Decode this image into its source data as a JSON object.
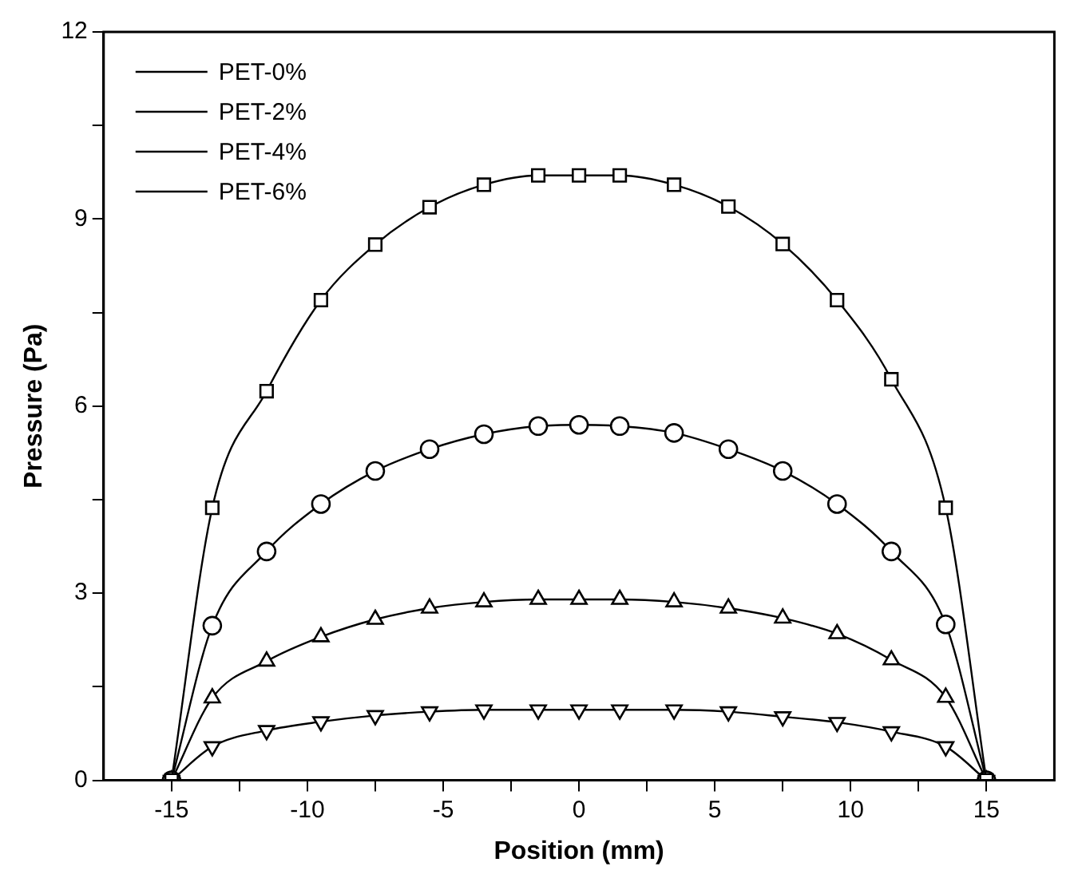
{
  "chart_data": {
    "type": "line",
    "xlabel": "Position (mm)",
    "ylabel": "Pressure (Pa)",
    "x": [
      -15,
      -13.5,
      -11.5,
      -9.5,
      -7.5,
      -5.5,
      -3.5,
      -1.5,
      0,
      1.5,
      3.5,
      5.5,
      7.5,
      9.5,
      11.5,
      13.5,
      15
    ],
    "series": [
      {
        "name": "PET-0%",
        "color": "#000000",
        "marker": "square",
        "values": [
          0,
          4.37,
          6.24,
          7.7,
          8.59,
          9.19,
          9.55,
          9.7,
          9.7,
          9.7,
          9.55,
          9.2,
          8.6,
          7.7,
          6.43,
          4.37,
          0
        ]
      },
      {
        "name": "PET-2%",
        "color": "#000000",
        "marker": "circle",
        "values": [
          0,
          2.48,
          3.67,
          4.43,
          4.96,
          5.31,
          5.55,
          5.68,
          5.7,
          5.68,
          5.57,
          5.31,
          4.96,
          4.43,
          3.67,
          2.5,
          0
        ]
      },
      {
        "name": "PET-4%",
        "color": "#000000",
        "marker": "triangle",
        "values": [
          0,
          1.32,
          1.91,
          2.3,
          2.58,
          2.76,
          2.86,
          2.9,
          2.9,
          2.9,
          2.86,
          2.76,
          2.6,
          2.35,
          1.93,
          1.33,
          0
        ]
      },
      {
        "name": "PET-6%",
        "color": "#000000",
        "marker": "triangle-down",
        "values": [
          0,
          0.54,
          0.8,
          0.94,
          1.04,
          1.1,
          1.13,
          1.13,
          1.13,
          1.13,
          1.13,
          1.1,
          1.02,
          0.93,
          0.78,
          0.54,
          0
        ]
      }
    ],
    "xlim": [
      -17.5,
      17.5
    ],
    "xticks": [
      -15,
      {
        "value": -12.5,
        "label": null
      },
      -10,
      {
        "value": -7.5,
        "label": null
      },
      -5,
      {
        "value": -2.5,
        "label": null
      },
      0,
      {
        "value": 2.5,
        "label": null
      },
      5,
      {
        "value": 7.5,
        "label": null
      },
      10,
      {
        "value": 12.5,
        "label": null
      },
      15
    ],
    "ylim": [
      0,
      12
    ],
    "yticks": [
      0,
      {
        "value": 1.5,
        "label": null
      },
      3,
      {
        "value": 4.5,
        "label": null
      },
      6,
      {
        "value": 7.5,
        "label": null
      },
      9,
      {
        "value": 10.5,
        "label": null
      },
      12
    ],
    "grid": false,
    "legend": "top left",
    "line_style": "solid"
  }
}
